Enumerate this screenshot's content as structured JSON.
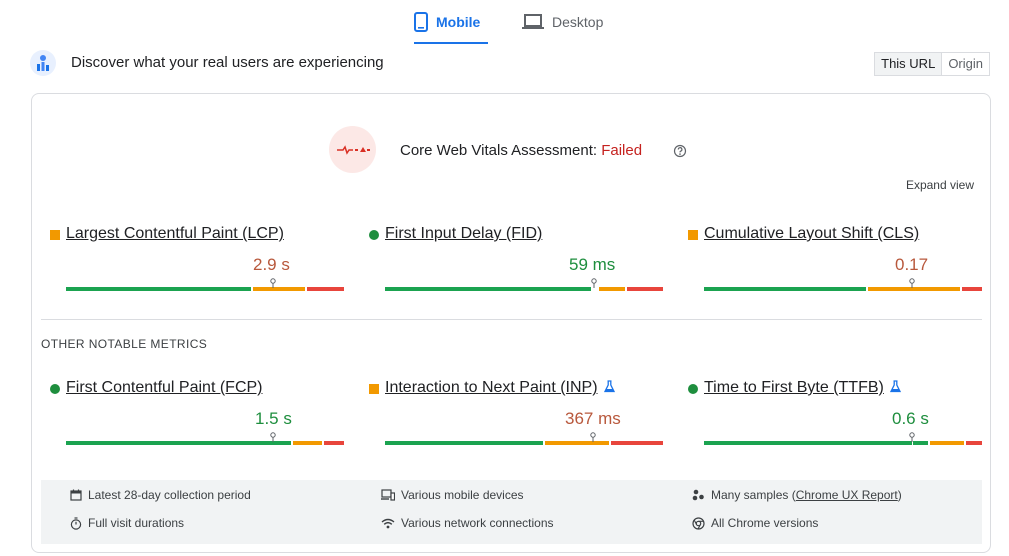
{
  "tabs": {
    "mobile": "Mobile",
    "desktop": "Desktop"
  },
  "crux": {
    "title": "Discover what your real users are experiencing",
    "this_url": "This URL",
    "origin": "Origin"
  },
  "assessment": {
    "label": "Core Web Vitals Assessment:",
    "status": "Failed",
    "expand": "Expand view"
  },
  "core_metrics": [
    {
      "name": "Largest Contentful Paint (LCP)",
      "value": "2.9 s",
      "rating": "needs-improvement"
    },
    {
      "name": "First Input Delay (FID)",
      "value": "59 ms",
      "rating": "good"
    },
    {
      "name": "Cumulative Layout Shift (CLS)",
      "value": "0.17",
      "rating": "needs-improvement"
    }
  ],
  "other_title": "OTHER NOTABLE METRICS",
  "other_metrics": [
    {
      "name": "First Contentful Paint (FCP)",
      "value": "1.5 s",
      "rating": "good"
    },
    {
      "name": "Interaction to Next Paint (INP)",
      "value": "367 ms",
      "rating": "needs-improvement"
    },
    {
      "name": "Time to First Byte (TTFB)",
      "value": "0.6 s",
      "rating": "good"
    }
  ],
  "footer": {
    "period": "Latest 28-day collection period",
    "devices": "Various mobile devices",
    "samples_prefix": "Many samples (",
    "samples_link": "Chrome UX Report",
    "samples_suffix": ")",
    "durations": "Full visit durations",
    "network": "Various network connections",
    "versions": "All Chrome versions"
  },
  "colors": {
    "good": "#1e8e3e",
    "needs_improvement": "#f29900",
    "poor": "#e8453c",
    "accent": "#1a73e8",
    "failed": "#c5221f"
  }
}
